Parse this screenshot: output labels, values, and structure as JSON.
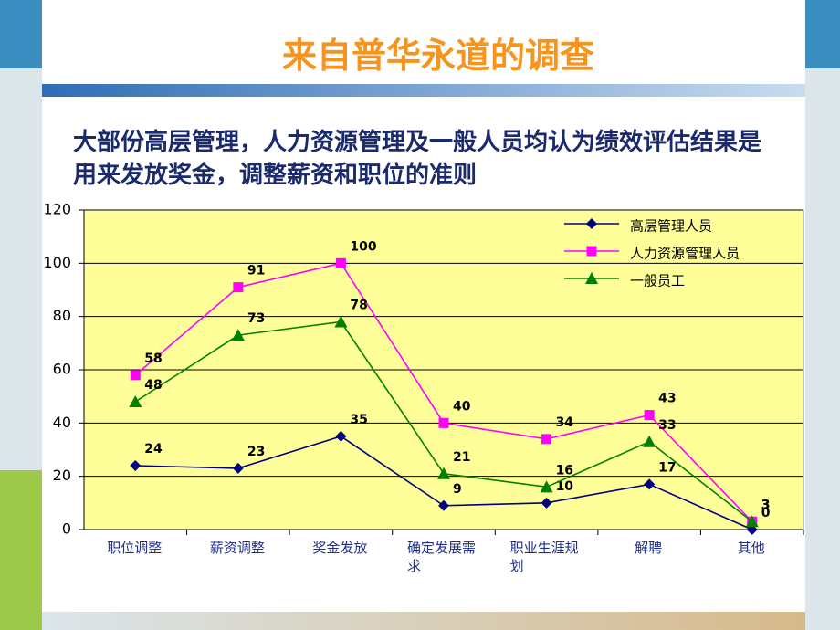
{
  "chart_data": {
    "type": "line",
    "title": "来自普华永道的调查",
    "subtitle": "大部份高层管理，人力资源管理及一般人员均认为绩效评估结果是用来发放奖金，调整薪资和职位的准则",
    "categories": [
      "职位调整",
      "薪资调整",
      "奖金发放",
      "确定发展需求",
      "职业生涯规划",
      "解聘",
      "其他"
    ],
    "series": [
      {
        "name": "高层管理人员",
        "color": "#000080",
        "marker": "diamond",
        "values": [
          24,
          23,
          35,
          9,
          10,
          17,
          0
        ]
      },
      {
        "name": "人力资源管理人员",
        "color": "#ff00ff",
        "marker": "square",
        "values": [
          58,
          91,
          100,
          40,
          34,
          43,
          3
        ]
      },
      {
        "name": "一般员工",
        "color": "#008000",
        "marker": "triangle",
        "values": [
          48,
          73,
          78,
          21,
          16,
          33,
          3
        ]
      }
    ],
    "ylim": [
      0,
      120
    ],
    "yticks": [
      0,
      20,
      40,
      60,
      80,
      100,
      120
    ],
    "grid": true,
    "legend": "top-right"
  }
}
